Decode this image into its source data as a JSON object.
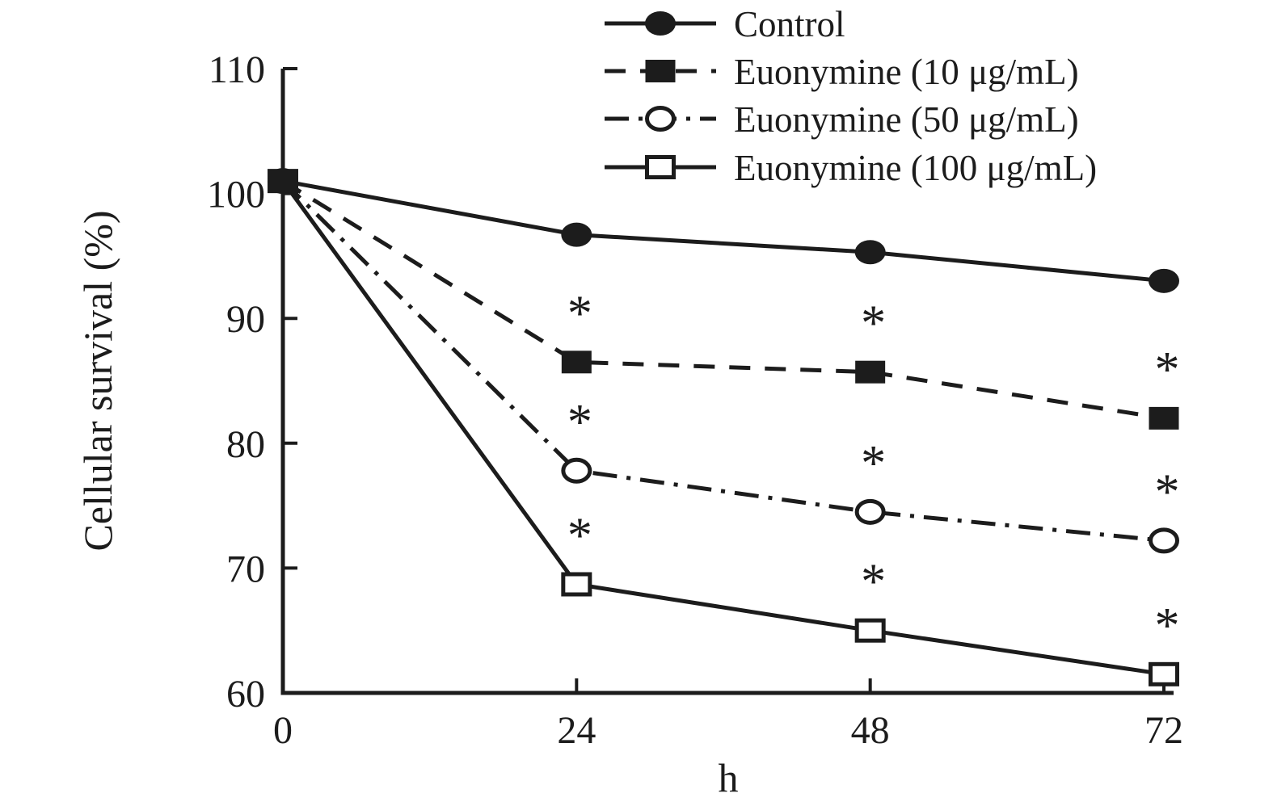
{
  "figure": {
    "background": "#ffffff",
    "ink_color": "#1c1c1c"
  },
  "chart_data": {
    "type": "line",
    "title": "",
    "xlabel": "h",
    "ylabel": "Cellular survival (%)",
    "x": [
      0,
      24,
      48,
      72
    ],
    "xticks": [
      0,
      24,
      48,
      72
    ],
    "yticks": [
      60,
      70,
      80,
      90,
      100,
      110
    ],
    "xlim": [
      0,
      72
    ],
    "ylim": [
      60,
      110
    ],
    "grid": false,
    "legend_position": "top-right",
    "significance_symbol": "*",
    "series": [
      {
        "name": "Control",
        "marker": "filled-circle",
        "line_style": "solid",
        "values": [
          101,
          96.7,
          95.3,
          93.0
        ],
        "significant": [
          false,
          false,
          false,
          false
        ]
      },
      {
        "name": "Euonymine (10 μg/mL)",
        "marker": "filled-square",
        "line_style": "dashed",
        "values": [
          101,
          86.5,
          85.7,
          82.0
        ],
        "significant": [
          false,
          true,
          true,
          true
        ]
      },
      {
        "name": "Euonymine (50 μg/mL)",
        "marker": "open-circle",
        "line_style": "dash-dot",
        "values": [
          101,
          77.8,
          74.5,
          72.2
        ],
        "significant": [
          false,
          true,
          true,
          true
        ]
      },
      {
        "name": "Euonymine (100 μg/mL)",
        "marker": "open-square",
        "line_style": "solid",
        "values": [
          101,
          68.7,
          65.0,
          61.5
        ],
        "significant": [
          false,
          true,
          true,
          true
        ]
      }
    ]
  }
}
